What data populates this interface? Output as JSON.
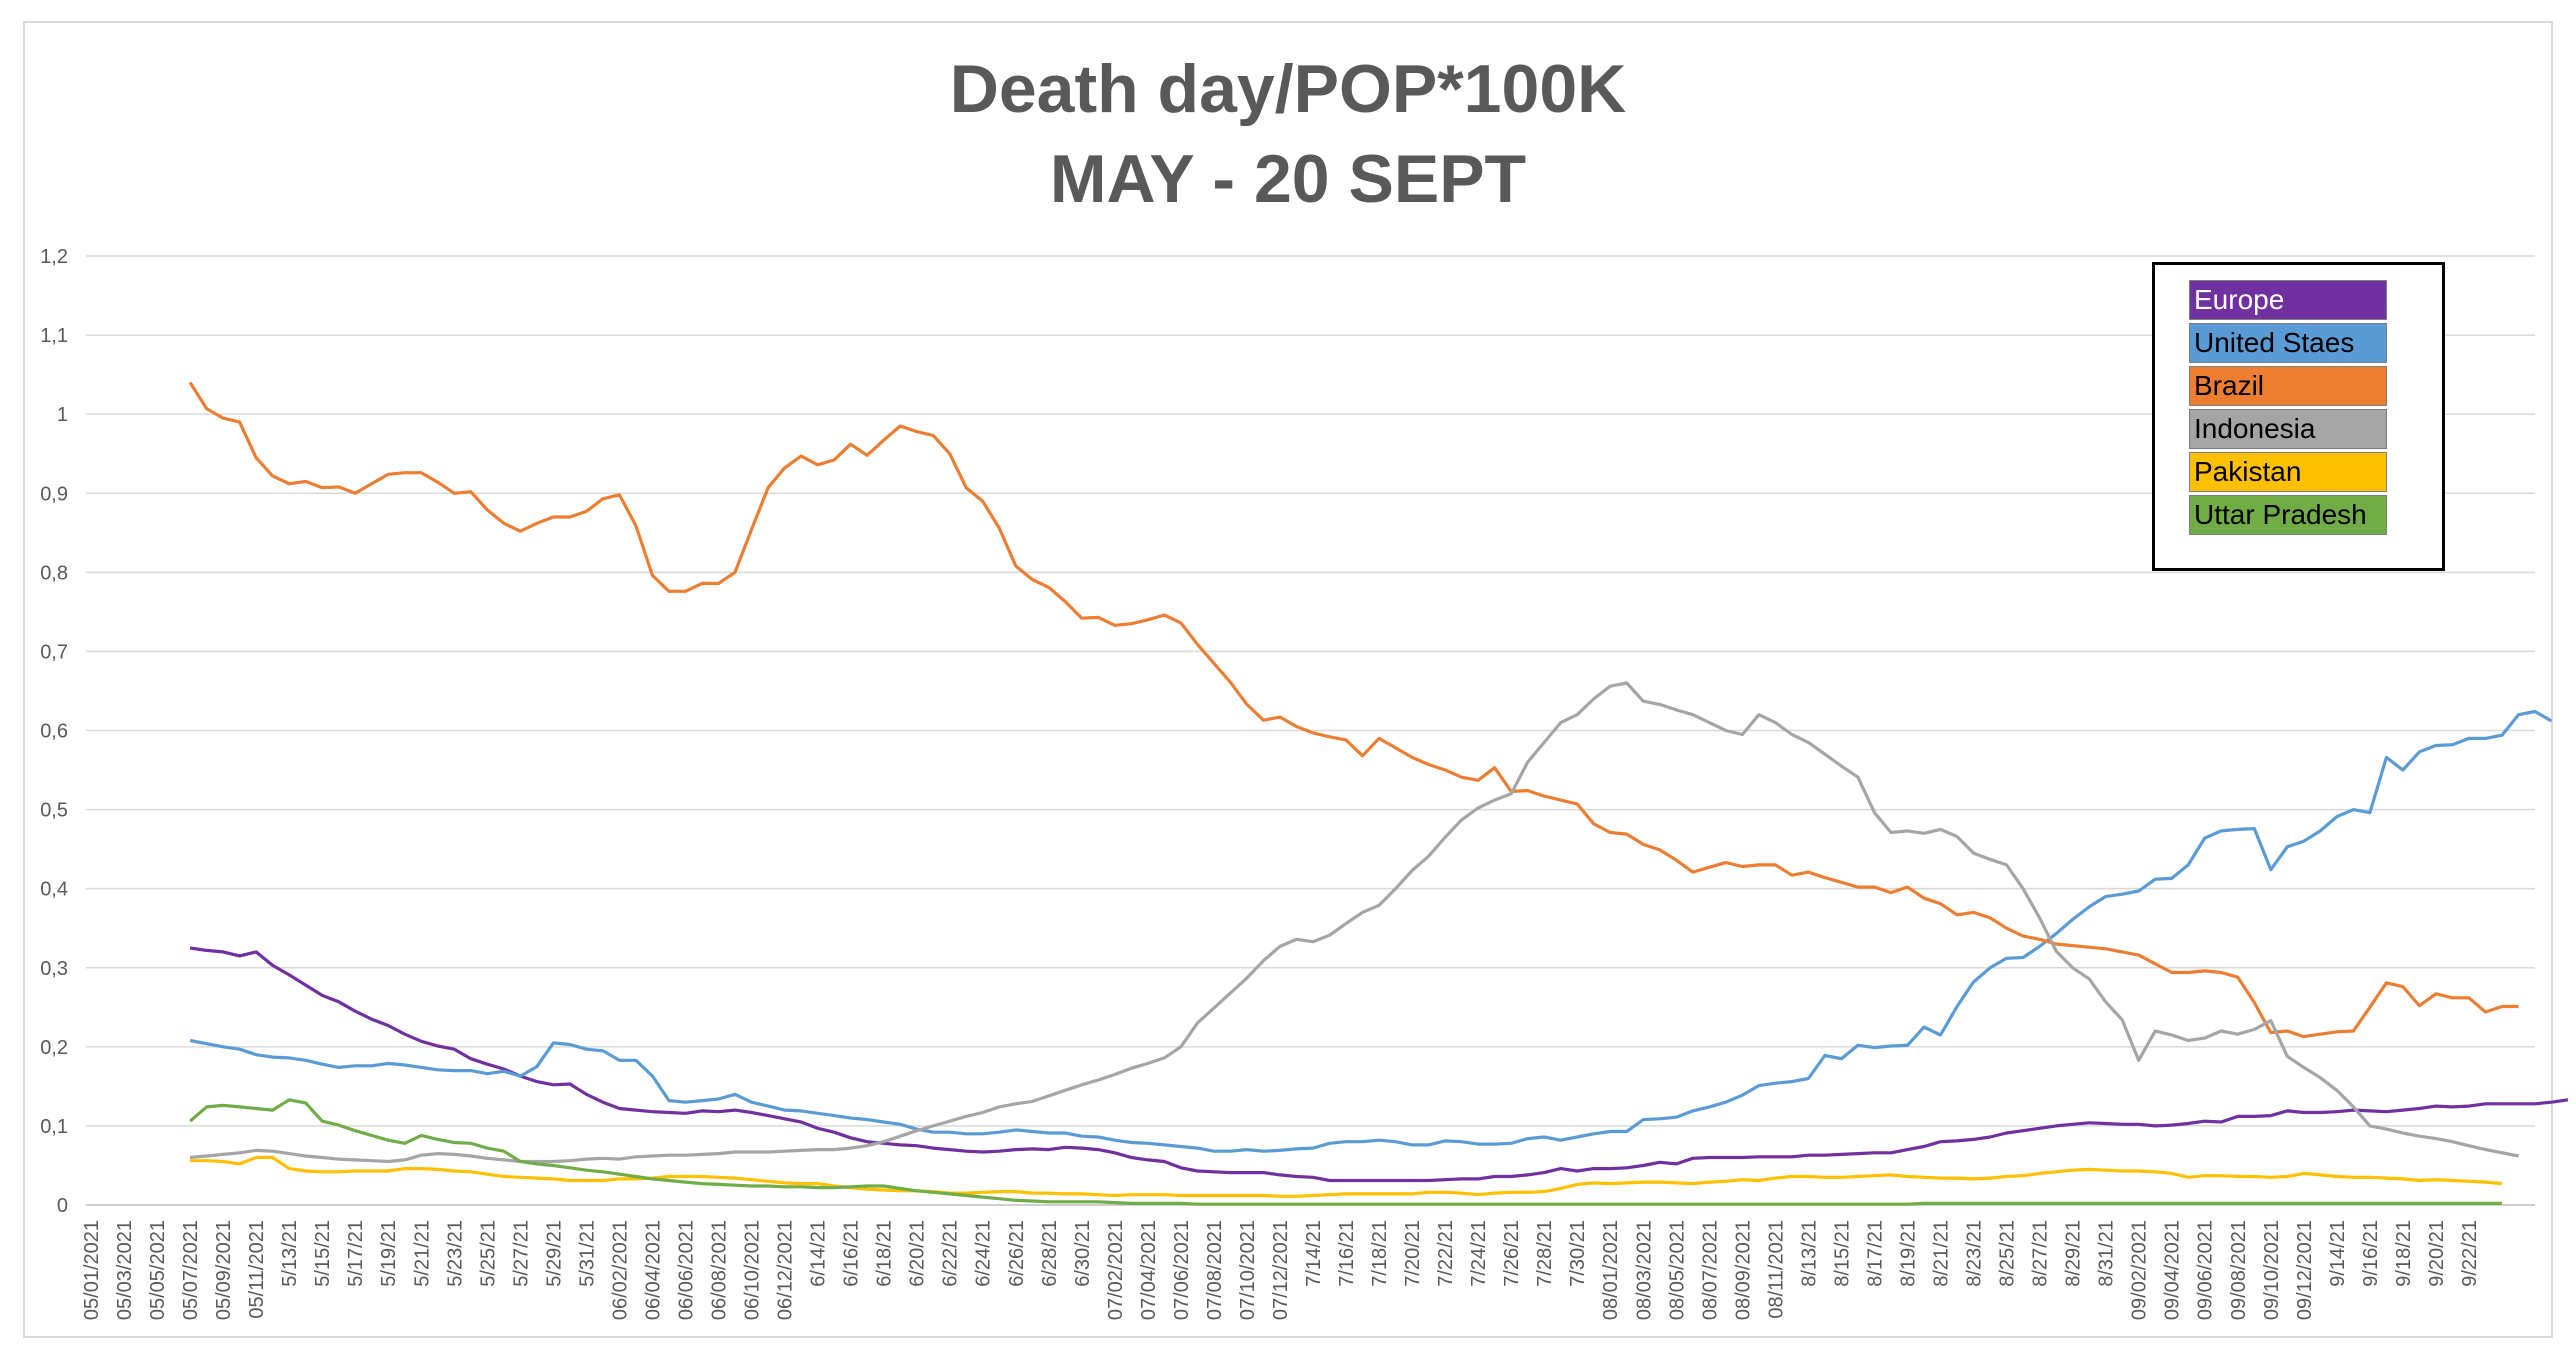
{
  "chart_data": {
    "type": "line",
    "title": "Death day/POP*100K",
    "subtitle": "MAY - 20 SEPT",
    "xlabel": "",
    "ylabel": "",
    "ylim": [
      0,
      1.2
    ],
    "yticks": [
      "0",
      "0,1",
      "0,2",
      "0,3",
      "0,4",
      "0,5",
      "0,6",
      "0,7",
      "0,8",
      "0,9",
      "1",
      "1,1",
      "1,2"
    ],
    "grid": true,
    "legend_position": "top-right",
    "x_tick_labels": [
      "05/01/2021",
      "05/03/2021",
      "05/05/2021",
      "05/07/2021",
      "05/09/2021",
      "05/11/2021",
      "5/13/21",
      "5/15/21",
      "5/17/21",
      "5/19/21",
      "5/21/21",
      "5/23/21",
      "5/25/21",
      "5/27/21",
      "5/29/21",
      "5/31/21",
      "06/02/2021",
      "06/04/2021",
      "06/06/2021",
      "06/08/2021",
      "06/10/2021",
      "06/12/2021",
      "6/14/21",
      "6/16/21",
      "6/18/21",
      "6/20/21",
      "6/22/21",
      "6/24/21",
      "6/26/21",
      "6/28/21",
      "6/30/21",
      "07/02/2021",
      "07/04/2021",
      "07/06/2021",
      "07/08/2021",
      "07/10/2021",
      "07/12/2021",
      "7/14/21",
      "7/16/21",
      "7/18/21",
      "7/20/21",
      "7/22/21",
      "7/24/21",
      "7/26/21",
      "7/28/21",
      "7/30/21",
      "08/01/2021",
      "08/03/2021",
      "08/05/2021",
      "08/07/2021",
      "08/09/2021",
      "08/11/2021",
      "8/13/21",
      "8/15/21",
      "8/17/21",
      "8/19/21",
      "8/21/21",
      "8/23/21",
      "8/25/21",
      "8/27/21",
      "8/29/21",
      "8/31/21",
      "09/02/2021",
      "09/04/2021",
      "09/06/2021",
      "09/08/2021",
      "09/10/2021",
      "09/12/2021",
      "9/14/21",
      "9/16/21",
      "9/18/21",
      "9/20/21",
      "9/22/21"
    ],
    "series": [
      {
        "name": "Europe",
        "color": "#7030a0",
        "start_day": 6,
        "values": [
          0.325,
          0.322,
          0.32,
          0.315,
          0.32,
          0.303,
          0.291,
          0.278,
          0.265,
          0.257,
          0.245,
          0.235,
          0.227,
          0.216,
          0.207,
          0.201,
          0.197,
          0.185,
          0.178,
          0.172,
          0.163,
          0.156,
          0.152,
          0.153,
          0.14,
          0.13,
          0.122,
          0.12,
          0.118,
          0.117,
          0.116,
          0.119,
          0.118,
          0.12,
          0.117,
          0.113,
          0.109,
          0.105,
          0.097,
          0.092,
          0.085,
          0.08,
          0.078,
          0.076,
          0.075,
          0.072,
          0.07,
          0.068,
          0.067,
          0.068,
          0.07,
          0.071,
          0.07,
          0.073,
          0.072,
          0.07,
          0.066,
          0.06,
          0.057,
          0.055,
          0.047,
          0.043,
          0.042,
          0.041,
          0.041,
          0.041,
          0.038,
          0.036,
          0.035,
          0.031,
          0.031,
          0.031,
          0.031,
          0.031,
          0.031,
          0.031,
          0.032,
          0.033,
          0.033,
          0.036,
          0.036,
          0.038,
          0.041,
          0.046,
          0.043,
          0.046,
          0.046,
          0.047,
          0.05,
          0.054,
          0.052,
          0.059,
          0.06,
          0.06,
          0.06,
          0.061,
          0.061,
          0.061,
          0.063,
          0.063,
          0.064,
          0.065,
          0.066,
          0.066,
          0.07,
          0.074,
          0.08,
          0.081,
          0.083,
          0.086,
          0.091,
          0.094,
          0.097,
          0.1,
          0.102,
          0.104,
          0.103,
          0.102,
          0.102,
          0.1,
          0.101,
          0.103,
          0.106,
          0.105,
          0.112,
          0.112,
          0.113,
          0.119,
          0.117,
          0.117,
          0.118,
          0.12,
          0.119,
          0.118,
          0.12,
          0.122,
          0.125,
          0.124,
          0.125,
          0.128,
          0.128,
          0.128,
          0.128,
          0.13,
          0.133
        ]
      },
      {
        "name": "United Staes",
        "color": "#5b9bd5",
        "start_day": 6,
        "values": [
          0.208,
          0.204,
          0.2,
          0.197,
          0.19,
          0.187,
          0.186,
          0.183,
          0.178,
          0.174,
          0.176,
          0.176,
          0.179,
          0.177,
          0.174,
          0.171,
          0.17,
          0.17,
          0.166,
          0.169,
          0.163,
          0.175,
          0.205,
          0.203,
          0.197,
          0.195,
          0.183,
          0.183,
          0.163,
          0.132,
          0.13,
          0.132,
          0.134,
          0.14,
          0.13,
          0.125,
          0.12,
          0.119,
          0.116,
          0.113,
          0.11,
          0.108,
          0.105,
          0.102,
          0.096,
          0.092,
          0.092,
          0.09,
          0.09,
          0.092,
          0.095,
          0.093,
          0.091,
          0.091,
          0.087,
          0.086,
          0.082,
          0.079,
          0.078,
          0.076,
          0.074,
          0.072,
          0.068,
          0.068,
          0.07,
          0.068,
          0.069,
          0.071,
          0.072,
          0.078,
          0.08,
          0.08,
          0.082,
          0.08,
          0.076,
          0.076,
          0.081,
          0.08,
          0.077,
          0.077,
          0.078,
          0.084,
          0.086,
          0.082,
          0.086,
          0.09,
          0.093,
          0.093,
          0.108,
          0.109,
          0.111,
          0.119,
          0.124,
          0.13,
          0.139,
          0.151,
          0.154,
          0.156,
          0.16,
          0.189,
          0.185,
          0.202,
          0.199,
          0.201,
          0.202,
          0.225,
          0.215,
          0.251,
          0.282,
          0.3,
          0.312,
          0.313,
          0.327,
          0.343,
          0.361,
          0.377,
          0.39,
          0.393,
          0.397,
          0.412,
          0.413,
          0.43,
          0.464,
          0.473,
          0.475,
          0.476,
          0.424,
          0.453,
          0.46,
          0.473,
          0.491,
          0.5,
          0.496,
          0.566,
          0.55,
          0.573,
          0.581,
          0.582,
          0.59,
          0.59,
          0.594,
          0.62,
          0.624,
          0.612
        ]
      },
      {
        "name": "Brazil",
        "color": "#ed7d31",
        "start_day": 6,
        "values": [
          1.04,
          1.007,
          0.995,
          0.99,
          0.945,
          0.922,
          0.912,
          0.915,
          0.907,
          0.908,
          0.9,
          0.912,
          0.924,
          0.926,
          0.926,
          0.914,
          0.9,
          0.902,
          0.879,
          0.862,
          0.852,
          0.862,
          0.87,
          0.87,
          0.877,
          0.893,
          0.898,
          0.859,
          0.796,
          0.776,
          0.776,
          0.786,
          0.786,
          0.8,
          0.854,
          0.907,
          0.932,
          0.947,
          0.936,
          0.942,
          0.962,
          0.948,
          0.967,
          0.985,
          0.978,
          0.973,
          0.95,
          0.907,
          0.89,
          0.856,
          0.808,
          0.791,
          0.781,
          0.763,
          0.742,
          0.743,
          0.733,
          0.735,
          0.74,
          0.746,
          0.736,
          0.709,
          0.685,
          0.661,
          0.633,
          0.613,
          0.617,
          0.605,
          0.597,
          0.592,
          0.588,
          0.568,
          0.59,
          0.578,
          0.566,
          0.557,
          0.55,
          0.541,
          0.537,
          0.553,
          0.523,
          0.524,
          0.517,
          0.512,
          0.507,
          0.482,
          0.471,
          0.469,
          0.456,
          0.449,
          0.436,
          0.421,
          0.427,
          0.433,
          0.428,
          0.43,
          0.43,
          0.417,
          0.421,
          0.414,
          0.408,
          0.402,
          0.402,
          0.395,
          0.402,
          0.388,
          0.381,
          0.367,
          0.37,
          0.363,
          0.35,
          0.34,
          0.336,
          0.33,
          0.328,
          0.326,
          0.324,
          0.32,
          0.316,
          0.305,
          0.294,
          0.294,
          0.296,
          0.294,
          0.288,
          0.256,
          0.218,
          0.22,
          0.213,
          0.216,
          0.219,
          0.22,
          0.25,
          0.281,
          0.276,
          0.252,
          0.267,
          0.262,
          0.262,
          0.244,
          0.251,
          0.251
        ]
      },
      {
        "name": "Indonesia",
        "color": "#a5a5a5",
        "start_day": 6,
        "values": [
          0.06,
          0.062,
          0.064,
          0.066,
          0.069,
          0.068,
          0.065,
          0.062,
          0.06,
          0.058,
          0.057,
          0.056,
          0.055,
          0.057,
          0.063,
          0.065,
          0.064,
          0.062,
          0.059,
          0.057,
          0.055,
          0.055,
          0.055,
          0.056,
          0.058,
          0.059,
          0.058,
          0.061,
          0.062,
          0.063,
          0.063,
          0.064,
          0.065,
          0.067,
          0.067,
          0.067,
          0.068,
          0.069,
          0.07,
          0.07,
          0.072,
          0.075,
          0.08,
          0.087,
          0.094,
          0.1,
          0.106,
          0.112,
          0.117,
          0.124,
          0.128,
          0.131,
          0.138,
          0.145,
          0.152,
          0.158,
          0.165,
          0.173,
          0.179,
          0.186,
          0.2,
          0.23,
          0.249,
          0.268,
          0.287,
          0.309,
          0.327,
          0.336,
          0.333,
          0.341,
          0.356,
          0.37,
          0.379,
          0.4,
          0.423,
          0.441,
          0.465,
          0.487,
          0.502,
          0.512,
          0.52,
          0.56,
          0.585,
          0.61,
          0.62,
          0.64,
          0.656,
          0.66,
          0.637,
          0.633,
          0.626,
          0.62,
          0.61,
          0.6,
          0.595,
          0.62,
          0.61,
          0.595,
          0.585,
          0.57,
          0.555,
          0.541,
          0.496,
          0.471,
          0.473,
          0.47,
          0.475,
          0.466,
          0.445,
          0.437,
          0.43,
          0.4,
          0.363,
          0.321,
          0.3,
          0.286,
          0.257,
          0.234,
          0.183,
          0.22,
          0.215,
          0.208,
          0.211,
          0.22,
          0.216,
          0.222,
          0.233,
          0.188,
          0.174,
          0.161,
          0.145,
          0.124,
          0.1,
          0.096,
          0.091,
          0.087,
          0.084,
          0.08,
          0.075,
          0.07,
          0.066,
          0.062
        ]
      },
      {
        "name": "Pakistan",
        "color": "#ffc000",
        "start_day": 6,
        "values": [
          0.056,
          0.056,
          0.055,
          0.052,
          0.06,
          0.06,
          0.046,
          0.043,
          0.042,
          0.042,
          0.043,
          0.043,
          0.043,
          0.046,
          0.046,
          0.045,
          0.043,
          0.042,
          0.039,
          0.036,
          0.035,
          0.034,
          0.033,
          0.031,
          0.031,
          0.031,
          0.033,
          0.033,
          0.034,
          0.036,
          0.036,
          0.036,
          0.035,
          0.034,
          0.032,
          0.03,
          0.028,
          0.027,
          0.027,
          0.024,
          0.022,
          0.02,
          0.019,
          0.018,
          0.018,
          0.017,
          0.015,
          0.015,
          0.016,
          0.017,
          0.017,
          0.015,
          0.015,
          0.014,
          0.014,
          0.013,
          0.012,
          0.013,
          0.013,
          0.013,
          0.012,
          0.012,
          0.012,
          0.012,
          0.012,
          0.012,
          0.011,
          0.011,
          0.012,
          0.013,
          0.014,
          0.014,
          0.014,
          0.014,
          0.014,
          0.016,
          0.016,
          0.015,
          0.013,
          0.015,
          0.016,
          0.016,
          0.017,
          0.021,
          0.026,
          0.028,
          0.027,
          0.028,
          0.029,
          0.029,
          0.028,
          0.027,
          0.029,
          0.03,
          0.032,
          0.031,
          0.034,
          0.036,
          0.036,
          0.035,
          0.035,
          0.036,
          0.037,
          0.038,
          0.036,
          0.035,
          0.034,
          0.034,
          0.033,
          0.034,
          0.036,
          0.037,
          0.04,
          0.042,
          0.044,
          0.045,
          0.044,
          0.043,
          0.043,
          0.042,
          0.04,
          0.035,
          0.037,
          0.037,
          0.036,
          0.036,
          0.035,
          0.036,
          0.04,
          0.038,
          0.036,
          0.035,
          0.035,
          0.034,
          0.033,
          0.031,
          0.032,
          0.031,
          0.03,
          0.029,
          0.027
        ]
      },
      {
        "name": "Uttar Pradesh",
        "color": "#70ad47",
        "start_day": 6,
        "values": [
          0.106,
          0.124,
          0.126,
          0.124,
          0.122,
          0.12,
          0.133,
          0.129,
          0.106,
          0.101,
          0.094,
          0.088,
          0.082,
          0.078,
          0.088,
          0.083,
          0.079,
          0.078,
          0.072,
          0.068,
          0.055,
          0.052,
          0.05,
          0.047,
          0.044,
          0.042,
          0.039,
          0.036,
          0.033,
          0.031,
          0.029,
          0.027,
          0.026,
          0.025,
          0.024,
          0.024,
          0.023,
          0.023,
          0.022,
          0.022,
          0.023,
          0.024,
          0.024,
          0.021,
          0.018,
          0.016,
          0.014,
          0.012,
          0.01,
          0.008,
          0.006,
          0.005,
          0.004,
          0.004,
          0.004,
          0.004,
          0.003,
          0.002,
          0.002,
          0.002,
          0.002,
          0.001,
          0.001,
          0.001,
          0.001,
          0.001,
          0.001,
          0.001,
          0.001,
          0.001,
          0.001,
          0.001,
          0.001,
          0.001,
          0.001,
          0.001,
          0.001,
          0.001,
          0.001,
          0.001,
          0.001,
          0.001,
          0.001,
          0.001,
          0.001,
          0.001,
          0.001,
          0.001,
          0.001,
          0.001,
          0.001,
          0.001,
          0.001,
          0.001,
          0.001,
          0.001,
          0.001,
          0.001,
          0.001,
          0.001,
          0.001,
          0.001,
          0.001,
          0.001,
          0.001,
          0.002,
          0.002,
          0.002,
          0.002,
          0.002,
          0.002,
          0.002,
          0.002,
          0.002,
          0.002,
          0.002,
          0.002,
          0.002,
          0.002,
          0.002,
          0.002,
          0.002,
          0.002,
          0.002,
          0.002,
          0.002,
          0.002,
          0.002,
          0.002,
          0.002,
          0.002,
          0.002,
          0.002,
          0.002,
          0.002,
          0.002,
          0.002,
          0.002,
          0.002,
          0.002,
          0.002
        ]
      }
    ]
  }
}
